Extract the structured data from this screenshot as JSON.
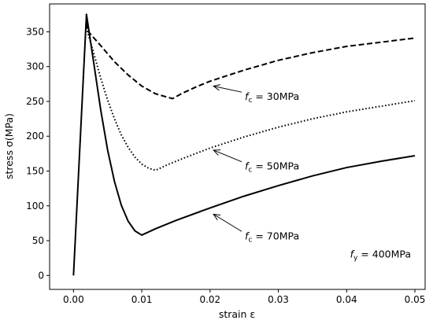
{
  "chart_data": {
    "type": "line",
    "xlabel": "strain ε",
    "ylabel": "stress σ(MPa)",
    "xlim": [
      -0.0035,
      0.0515
    ],
    "ylim": [
      -20,
      390
    ],
    "xticks": [
      0.0,
      0.01,
      0.02,
      0.03,
      0.04,
      0.05
    ],
    "xtick_labels": [
      "0.00",
      "0.01",
      "0.02",
      "0.03",
      "0.04",
      "0.05"
    ],
    "yticks": [
      0,
      50,
      100,
      150,
      200,
      250,
      300,
      350
    ],
    "ytick_labels": [
      "0",
      "50",
      "100",
      "150",
      "200",
      "250",
      "300",
      "350"
    ],
    "grid": false,
    "series": [
      {
        "label": "f_c = 30MPa",
        "style": "dashed",
        "points": [
          [
            0.0019,
            375
          ],
          [
            0.002,
            352
          ],
          [
            0.004,
            330
          ],
          [
            0.006,
            307
          ],
          [
            0.008,
            288
          ],
          [
            0.01,
            272
          ],
          [
            0.012,
            261
          ],
          [
            0.0145,
            254
          ],
          [
            0.016,
            262
          ],
          [
            0.018,
            271
          ],
          [
            0.02,
            279
          ],
          [
            0.025,
            295
          ],
          [
            0.03,
            309
          ],
          [
            0.035,
            320
          ],
          [
            0.04,
            329
          ],
          [
            0.045,
            335
          ],
          [
            0.05,
            341
          ]
        ]
      },
      {
        "label": "f_c = 50MPa",
        "style": "dotted",
        "points": [
          [
            0.0019,
            375
          ],
          [
            0.002,
            352
          ],
          [
            0.003,
            318
          ],
          [
            0.004,
            283
          ],
          [
            0.005,
            252
          ],
          [
            0.006,
            225
          ],
          [
            0.007,
            202
          ],
          [
            0.008,
            184
          ],
          [
            0.009,
            170
          ],
          [
            0.01,
            160
          ],
          [
            0.011,
            154
          ],
          [
            0.012,
            151
          ],
          [
            0.014,
            160
          ],
          [
            0.016,
            168
          ],
          [
            0.02,
            183
          ],
          [
            0.025,
            199
          ],
          [
            0.03,
            213
          ],
          [
            0.035,
            225
          ],
          [
            0.04,
            235
          ],
          [
            0.045,
            243
          ],
          [
            0.05,
            251
          ]
        ]
      },
      {
        "label": "f_c = 70MPa",
        "style": "solid",
        "points": [
          [
            0.0,
            0
          ],
          [
            0.0019,
            375
          ],
          [
            0.003,
            303
          ],
          [
            0.004,
            237
          ],
          [
            0.005,
            180
          ],
          [
            0.006,
            135
          ],
          [
            0.007,
            101
          ],
          [
            0.008,
            78
          ],
          [
            0.009,
            64
          ],
          [
            0.01,
            58
          ],
          [
            0.012,
            67
          ],
          [
            0.015,
            79
          ],
          [
            0.02,
            97
          ],
          [
            0.025,
            114
          ],
          [
            0.03,
            129
          ],
          [
            0.035,
            143
          ],
          [
            0.04,
            155
          ],
          [
            0.045,
            164
          ],
          [
            0.05,
            172
          ]
        ]
      }
    ],
    "annotations": [
      {
        "text_main": "f",
        "text_sub": "c",
        "text_rest": " = 30MPa",
        "text_xy": [
          0.0251,
          252
        ],
        "arrow_to": [
          0.0205,
          272
        ]
      },
      {
        "text_main": "f",
        "text_sub": "c",
        "text_rest": " = 50MPa",
        "text_xy": [
          0.0251,
          152
        ],
        "arrow_to": [
          0.0205,
          180
        ]
      },
      {
        "text_main": "f",
        "text_sub": "c",
        "text_rest": " = 70MPa",
        "text_xy": [
          0.0251,
          52
        ],
        "arrow_to": [
          0.0205,
          88
        ]
      },
      {
        "text_main": "f",
        "text_sub": "y",
        "text_rest": " = 400MPa",
        "text_xy": [
          0.0405,
          26
        ],
        "arrow_to": null
      }
    ]
  }
}
